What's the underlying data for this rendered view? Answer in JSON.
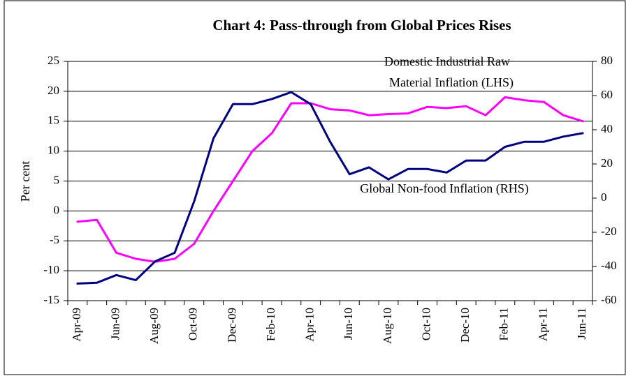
{
  "chart_data": {
    "type": "line",
    "title": "Chart 4: Pass-through from Global Prices Rises",
    "y_label": "Per cent",
    "categories": [
      "Apr-09",
      null,
      "Jun-09",
      null,
      "Aug-09",
      null,
      "Oct-09",
      null,
      "Dec-09",
      null,
      "Feb-10",
      null,
      "Apr-10",
      null,
      "Jun-10",
      null,
      "Aug-10",
      null,
      "Oct-10",
      null,
      "Dec-10",
      null,
      "Feb-11",
      null,
      "Apr-11",
      null,
      "Jun-11"
    ],
    "series": [
      {
        "name": "Domestic Industrial Raw Material Inflation (LHS)",
        "color": "#ff00ff",
        "axis": "y",
        "values": [
          -1.8,
          -1.5,
          -7,
          -8,
          -8.5,
          -8,
          -5.5,
          0,
          5,
          10,
          13,
          18,
          18,
          17,
          16.8,
          16,
          16.2,
          16.3,
          17.4,
          17.2,
          17.5,
          16,
          19,
          18.5,
          18.2,
          16,
          15
        ]
      },
      {
        "name": "Global Non-food Inflation (RHS)",
        "color": "#000080",
        "axis": "y2",
        "values": [
          -50,
          -49.5,
          -45,
          -48,
          -37,
          -32,
          -2,
          35,
          55,
          55,
          58,
          62,
          55,
          33,
          14,
          18,
          11,
          17,
          17,
          15,
          22,
          22,
          30,
          33,
          33,
          36,
          38
        ]
      }
    ],
    "annotations": [
      "Domestic Industrial Raw",
      "Material Inflation (LHS)",
      "Global Non-food Inflation (RHS)"
    ],
    "ylim": [
      -15,
      25
    ],
    "yticks": [
      -15,
      -10,
      -5,
      0,
      5,
      10,
      15,
      20,
      25
    ],
    "y2lim": [
      -60,
      80
    ],
    "y2ticks": [
      -60,
      -40,
      -20,
      0,
      20,
      40,
      60,
      80
    ],
    "grid": true
  }
}
